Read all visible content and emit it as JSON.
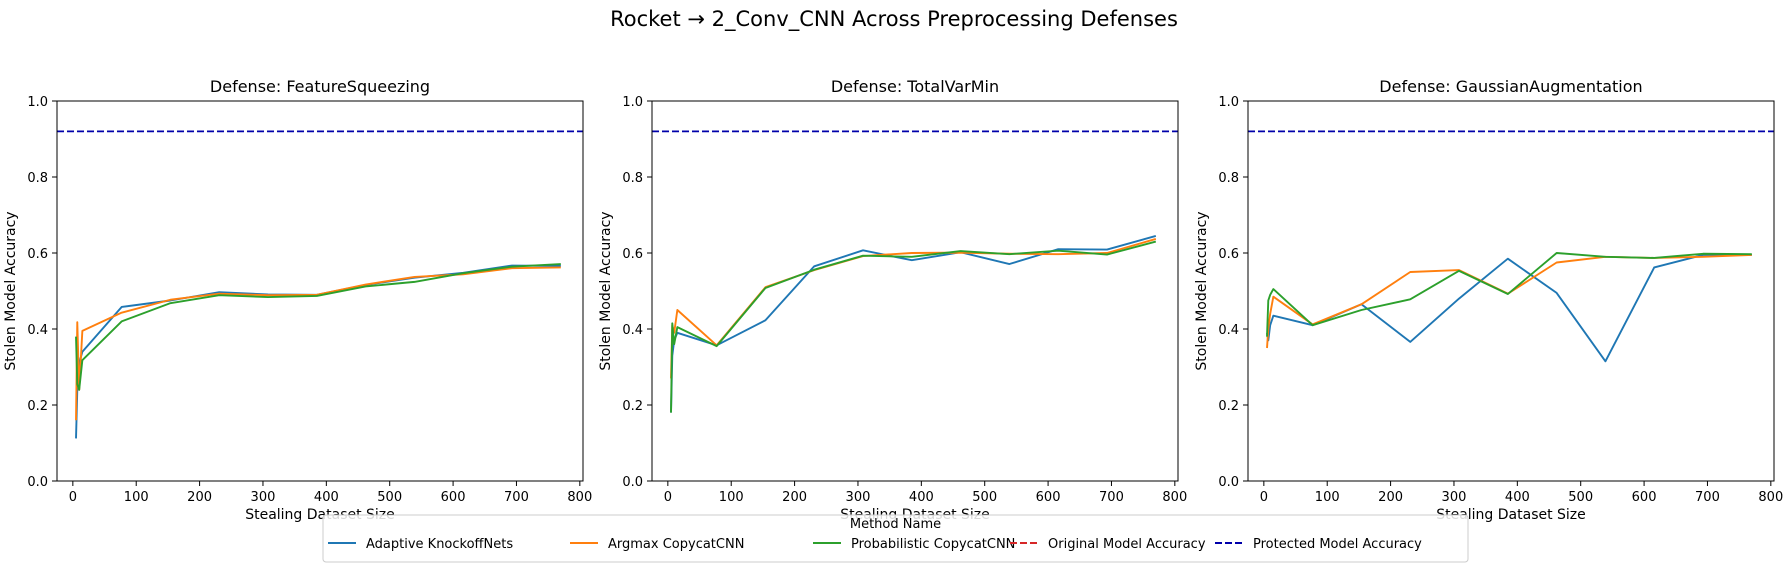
{
  "figure": {
    "title": "Rocket → 2_Conv_CNN Across Preprocessing Defenses",
    "legend_title": "Method Name",
    "legend_items": [
      {
        "label": "Adaptive KnockoffNets",
        "color": "#1f77b4",
        "style": "solid"
      },
      {
        "label": "Argmax CopycatCNN",
        "color": "#ff7f0e",
        "style": "solid"
      },
      {
        "label": "Probabilistic CopycatCNN",
        "color": "#2ca02c",
        "style": "solid"
      },
      {
        "label": "Original Model Accuracy",
        "color": "#d62728",
        "style": "dashed"
      },
      {
        "label": "Protected Model Accuracy",
        "color": "#0000aa",
        "style": "dashed"
      }
    ]
  },
  "chart_data": [
    {
      "type": "line",
      "title": "Defense: FeatureSqueezing",
      "xlabel": "Stealing Dataset Size",
      "ylabel": "Stolen Model Accuracy",
      "xlim": [
        -25,
        805
      ],
      "ylim": [
        0,
        1
      ],
      "xticks": [
        0,
        100,
        200,
        300,
        400,
        500,
        600,
        700,
        800
      ],
      "yticks": [
        0.0,
        0.2,
        0.4,
        0.6,
        0.8,
        1.0
      ],
      "grid": false,
      "reference_lines": [
        {
          "name": "Protected Model Accuracy",
          "y": 0.92,
          "color": "#0000aa"
        }
      ],
      "series": [
        {
          "name": "Adaptive KnockoffNets",
          "color": "#1f77b4",
          "x": [
            5,
            7,
            10,
            15,
            77,
            154,
            231,
            308,
            385,
            462,
            539,
            616,
            693,
            770
          ],
          "y": [
            0.112,
            0.24,
            0.31,
            0.34,
            0.458,
            0.475,
            0.497,
            0.491,
            0.49,
            0.516,
            0.535,
            0.548,
            0.567,
            0.566
          ]
        },
        {
          "name": "Argmax CopycatCNN",
          "color": "#ff7f0e",
          "x": [
            5,
            7,
            10,
            15,
            77,
            154,
            231,
            308,
            385,
            462,
            539,
            616,
            693,
            770
          ],
          "y": [
            0.16,
            0.418,
            0.24,
            0.395,
            0.443,
            0.477,
            0.493,
            0.489,
            0.49,
            0.517,
            0.537,
            0.544,
            0.56,
            0.562
          ]
        },
        {
          "name": "Probabilistic CopycatCNN",
          "color": "#2ca02c",
          "x": [
            5,
            7,
            10,
            15,
            77,
            154,
            231,
            308,
            385,
            462,
            539,
            616,
            693,
            770
          ],
          "y": [
            0.38,
            0.255,
            0.24,
            0.318,
            0.42,
            0.468,
            0.489,
            0.484,
            0.487,
            0.512,
            0.524,
            0.547,
            0.564,
            0.571
          ]
        }
      ]
    },
    {
      "type": "line",
      "title": "Defense: TotalVarMin",
      "xlabel": "Stealing Dataset Size",
      "ylabel": "Stolen Model Accuracy",
      "xlim": [
        -25,
        805
      ],
      "ylim": [
        0,
        1
      ],
      "xticks": [
        0,
        100,
        200,
        300,
        400,
        500,
        600,
        700,
        800
      ],
      "yticks": [
        0.0,
        0.2,
        0.4,
        0.6,
        0.8,
        1.0
      ],
      "grid": false,
      "reference_lines": [
        {
          "name": "Protected Model Accuracy",
          "y": 0.92,
          "color": "#0000aa"
        }
      ],
      "series": [
        {
          "name": "Adaptive KnockoffNets",
          "color": "#1f77b4",
          "x": [
            5,
            7,
            10,
            15,
            77,
            154,
            231,
            308,
            385,
            462,
            539,
            616,
            693,
            770
          ],
          "y": [
            0.18,
            0.33,
            0.37,
            0.39,
            0.357,
            0.423,
            0.565,
            0.607,
            0.581,
            0.602,
            0.571,
            0.61,
            0.609,
            0.645
          ]
        },
        {
          "name": "Argmax CopycatCNN",
          "color": "#ff7f0e",
          "x": [
            5,
            7,
            10,
            15,
            77,
            154,
            231,
            308,
            385,
            462,
            539,
            616,
            693,
            770
          ],
          "y": [
            0.27,
            0.41,
            0.39,
            0.45,
            0.357,
            0.51,
            0.555,
            0.592,
            0.6,
            0.601,
            0.598,
            0.597,
            0.6,
            0.637
          ]
        },
        {
          "name": "Probabilistic CopycatCNN",
          "color": "#2ca02c",
          "x": [
            5,
            7,
            10,
            15,
            77,
            154,
            231,
            308,
            385,
            462,
            539,
            616,
            693,
            770
          ],
          "y": [
            0.18,
            0.415,
            0.36,
            0.405,
            0.355,
            0.508,
            0.556,
            0.593,
            0.59,
            0.605,
            0.597,
            0.606,
            0.596,
            0.63
          ]
        }
      ]
    },
    {
      "type": "line",
      "title": "Defense: GaussianAugmentation",
      "xlabel": "Stealing Dataset Size",
      "ylabel": "Stolen Model Accuracy",
      "xlim": [
        -25,
        805
      ],
      "ylim": [
        0,
        1
      ],
      "xticks": [
        0,
        100,
        200,
        300,
        400,
        500,
        600,
        700,
        800
      ],
      "yticks": [
        0.0,
        0.2,
        0.4,
        0.6,
        0.8,
        1.0
      ],
      "grid": false,
      "reference_lines": [
        {
          "name": "Protected Model Accuracy",
          "y": 0.92,
          "color": "#0000aa"
        }
      ],
      "series": [
        {
          "name": "Adaptive KnockoffNets",
          "color": "#1f77b4",
          "x": [
            5,
            7,
            10,
            15,
            77,
            154,
            231,
            308,
            385,
            462,
            539,
            616,
            693,
            770
          ],
          "y": [
            0.39,
            0.37,
            0.41,
            0.435,
            0.41,
            0.465,
            0.366,
            0.48,
            0.585,
            0.495,
            0.315,
            0.562,
            0.595,
            0.595
          ]
        },
        {
          "name": "Argmax CopycatCNN",
          "color": "#ff7f0e",
          "x": [
            5,
            7,
            10,
            15,
            77,
            154,
            231,
            308,
            385,
            462,
            539,
            616,
            693,
            770
          ],
          "y": [
            0.35,
            0.4,
            0.44,
            0.485,
            0.412,
            0.465,
            0.55,
            0.555,
            0.493,
            0.575,
            0.59,
            0.587,
            0.59,
            0.595
          ]
        },
        {
          "name": "Probabilistic CopycatCNN",
          "color": "#2ca02c",
          "x": [
            5,
            7,
            10,
            15,
            77,
            154,
            231,
            308,
            385,
            462,
            539,
            616,
            693,
            770
          ],
          "y": [
            0.38,
            0.475,
            0.49,
            0.505,
            0.41,
            0.45,
            0.478,
            0.553,
            0.492,
            0.6,
            0.59,
            0.587,
            0.598,
            0.597
          ]
        }
      ]
    }
  ]
}
